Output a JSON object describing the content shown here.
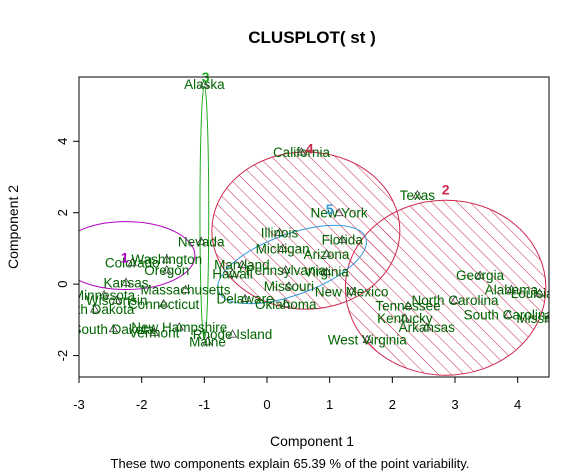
{
  "chart_data": {
    "type": "scatter",
    "title": "CLUSPLOT( st )",
    "xlabel": "Component 1",
    "ylabel": "Component 2",
    "note": "These two components explain 65.39 % of the point variability.",
    "xlim": [
      -3,
      4.5
    ],
    "ylim": [
      -2.6,
      5.8
    ],
    "xticks": [
      "-3",
      "-2",
      "-1",
      "0",
      "1",
      "2",
      "3",
      "4"
    ],
    "yticks": [
      "-2",
      "0",
      "2",
      "4"
    ],
    "colors": {
      "label_text": "#006400",
      "point": "#333333",
      "ellipse_red": "#cd2950",
      "ellipse_blue": "#3399dd",
      "ellipse_purple": "#b000c0",
      "ellipse_green": "#22aa22"
    },
    "clusters": [
      {
        "id": "1",
        "center": [
          -2.25,
          0.8
        ],
        "rx": 1.1,
        "ry": 0.95,
        "angle": 0,
        "color": "#b000c0",
        "shaded": false,
        "label_color": "#b000c0"
      },
      {
        "id": "2",
        "center": [
          2.85,
          -0.1
        ],
        "rx": 1.6,
        "ry": 2.45,
        "angle": 0,
        "color": "#cd2950",
        "shaded": true,
        "label_color": "#cd2950"
      },
      {
        "id": "3",
        "center": [
          -1.0,
          2.0
        ],
        "rx": 0.07,
        "ry": 3.55,
        "angle": 0,
        "color": "#22aa22",
        "shaded": false,
        "label_color": "#22aa22"
      },
      {
        "id": "4",
        "center": [
          0.62,
          1.5
        ],
        "rx": 1.5,
        "ry": 2.2,
        "angle": 0,
        "color": "#cd2950",
        "shaded": true,
        "label_color": "#cd2950"
      },
      {
        "id": "5",
        "center": [
          0.4,
          0.55
        ],
        "rx": 1.25,
        "ry": 0.85,
        "angle": -20,
        "color": "#3399dd",
        "shaded": false,
        "label_color": "#3399dd"
      }
    ],
    "cluster_label_points": [
      {
        "id": "1",
        "x": -2.27,
        "y": 0.75
      },
      {
        "id": "2",
        "x": 2.85,
        "y": 2.65
      },
      {
        "id": "3",
        "x": -0.98,
        "y": 5.8
      },
      {
        "id": "4",
        "x": 0.68,
        "y": 3.8
      },
      {
        "id": "5",
        "x": 1.0,
        "y": 2.1
      }
    ],
    "points": [
      {
        "name": "Alaska",
        "x": -1.0,
        "y": 5.6
      },
      {
        "name": "California",
        "x": 0.55,
        "y": 3.7
      },
      {
        "name": "Texas",
        "x": 2.4,
        "y": 2.5
      },
      {
        "name": "New York",
        "x": 1.15,
        "y": 2.0
      },
      {
        "name": "Illinois",
        "x": 0.2,
        "y": 1.45
      },
      {
        "name": "Nevada",
        "x": -1.05,
        "y": 1.2
      },
      {
        "name": "Florida",
        "x": 1.2,
        "y": 1.25
      },
      {
        "name": "Michigan",
        "x": 0.25,
        "y": 1.0
      },
      {
        "name": "Arizona",
        "x": 0.95,
        "y": 0.85
      },
      {
        "name": "Washington",
        "x": -1.6,
        "y": 0.7
      },
      {
        "name": "Colorado",
        "x": -2.15,
        "y": 0.6
      },
      {
        "name": "Oregon",
        "x": -1.6,
        "y": 0.4
      },
      {
        "name": "Maryland",
        "x": -0.4,
        "y": 0.55
      },
      {
        "name": "Hawaii",
        "x": -0.55,
        "y": 0.3
      },
      {
        "name": "Pennsylvania",
        "x": 0.3,
        "y": 0.4
      },
      {
        "name": "Virginia",
        "x": 0.95,
        "y": 0.35
      },
      {
        "name": "Georgia",
        "x": 3.4,
        "y": 0.25
      },
      {
        "name": "Kansas",
        "x": -2.25,
        "y": 0.05
      },
      {
        "name": "Missouri",
        "x": 0.35,
        "y": -0.05
      },
      {
        "name": "Massachusetts",
        "x": -1.3,
        "y": -0.15
      },
      {
        "name": "New Mexico",
        "x": 1.35,
        "y": -0.2
      },
      {
        "name": "Alabama",
        "x": 3.9,
        "y": -0.15
      },
      {
        "name": "Louisiana",
        "x": 4.35,
        "y": -0.25
      },
      {
        "name": "Delaware",
        "x": -0.35,
        "y": -0.4
      },
      {
        "name": "Oklahoma",
        "x": 0.3,
        "y": -0.55
      },
      {
        "name": "Minnesota",
        "x": -2.6,
        "y": -0.3
      },
      {
        "name": "Wisconsin",
        "x": -2.4,
        "y": -0.45
      },
      {
        "name": "Connecticut",
        "x": -1.65,
        "y": -0.55
      },
      {
        "name": "North Carolina",
        "x": 3.0,
        "y": -0.45
      },
      {
        "name": "Tennessee",
        "x": 2.25,
        "y": -0.6
      },
      {
        "name": "North Dakota",
        "x": -2.75,
        "y": -0.7
      },
      {
        "name": "South Carolina",
        "x": 3.85,
        "y": -0.85
      },
      {
        "name": "Mississippi",
        "x": 4.5,
        "y": -0.95
      },
      {
        "name": "Kentucky",
        "x": 2.2,
        "y": -0.95
      },
      {
        "name": "Arkansas",
        "x": 2.55,
        "y": -1.2
      },
      {
        "name": "New Hampshire",
        "x": -1.4,
        "y": -1.2
      },
      {
        "name": "South Dakota",
        "x": -2.45,
        "y": -1.25
      },
      {
        "name": "Vermont",
        "x": -1.8,
        "y": -1.35
      },
      {
        "name": "Rhode Island",
        "x": -0.55,
        "y": -1.4
      },
      {
        "name": "Maine",
        "x": -0.95,
        "y": -1.6
      },
      {
        "name": "West Virginia",
        "x": 1.6,
        "y": -1.55
      }
    ]
  }
}
